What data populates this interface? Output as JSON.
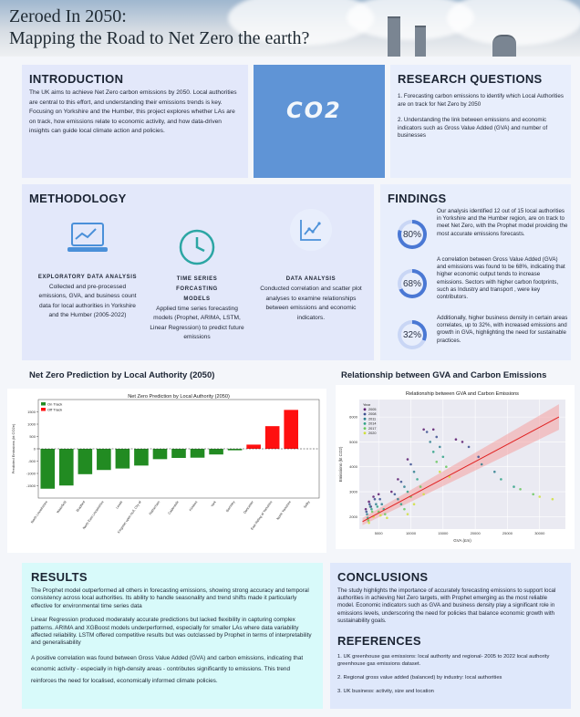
{
  "hero": {
    "title_line1": "Zeroed In 2050:",
    "title_line2": "Mapping the Road to Net Zero the earth?"
  },
  "introduction": {
    "title": "INTRODUCTION",
    "text": "The UK aims to achieve Net Zero carbon emissions by 2050. Local authorities are central to this effort, and understanding their emissions trends is key. Focusing on Yorkshire and the Humber, this project explores whether LAs are on track, how emissions relate to economic activity, and how data-driven insights can guide local climate action and policies."
  },
  "co2_image": {
    "text": "CO2"
  },
  "research_questions": {
    "title": "RESEARCH QUESTIONS",
    "items": [
      "1. Forecasting carbon emissions to identify which Local Authorities are on track for Net Zero by 2050",
      "2. Understanding the link between emissions and economic indicators such as Gross Value Added (GVA) and number of businesses"
    ]
  },
  "methodology": {
    "title": "METHODOLOGY",
    "columns": [
      {
        "icon": "laptop-chart-icon",
        "heading": "EXPLORATORY DATA ANALYSIS",
        "text": "Collected and pre-processed emissions, GVA, and business count data for local authorities in Yorkshire and the Humber (2005-2022)"
      },
      {
        "icon": "clock-icon",
        "heading": "TIME SERIES FORCASTING MODELS",
        "text": "Applied time series forecasting models (Prophet, ARIMA, LSTM, Linear Regression) to predict future emissions"
      },
      {
        "icon": "line-chart-icon",
        "heading": "DATA ANALYSIS",
        "text": "Conducted correlation and scatter plot analyses to examine relationships between emissions and economic indicators."
      }
    ]
  },
  "findings": {
    "title": "FINDINGS",
    "items": [
      {
        "value": 80,
        "label": "80%",
        "text": "Our analysis identified 12 out of 15 local authorities in Yorkshire and the Humber region, are on track to meet Net Zero, with the Prophet model providing the most accurate emissions forecasts."
      },
      {
        "value": 68,
        "label": "68%",
        "text": "A correlation between Gross Value Added (GVA) and emissions was found to be 68%, indicating that higher economic output tends to increase emissions. Sectors with higher carbon footprints, such as Industry and transport , were key contributors."
      },
      {
        "value": 32,
        "label": "32%",
        "text": "Additionally, higher business density in certain areas correlates, up to 32%, with increased emissions and growth in GVA, highlighting the need for sustainable practices."
      }
    ]
  },
  "bar_panel": {
    "title": "Net Zero Prediction by Local Authority (2050)"
  },
  "scatter_panel": {
    "title": "Relationship between GVA and Carbon Emissions"
  },
  "chart_data": [
    {
      "type": "bar",
      "title": "Net Zero Prediction by Local Authority (2050)",
      "ylabel": "Predicted Emissions (kt CO2e)",
      "ylim": [
        -2000,
        2000
      ],
      "yticks": [
        -1500,
        -1000,
        -500,
        0,
        500,
        1000,
        1500
      ],
      "legend": [
        "On Track",
        "Off Track"
      ],
      "categories": [
        "North Lincolnshire",
        "Wakefield",
        "Bradford",
        "North East Lincolnshire",
        "Leeds",
        "Kingston upon Hull, City of",
        "Rotherham",
        "Calderdale",
        "Kirklees",
        "York",
        "Barnsley",
        "Doncaster",
        "East Riding of Yorkshire",
        "North Yorkshire",
        "Selby"
      ],
      "values": [
        -1620,
        -1490,
        -1030,
        -860,
        -800,
        -680,
        -420,
        -370,
        -360,
        -230,
        -60,
        170,
        920,
        1580,
        0
      ],
      "status": [
        "On Track",
        "On Track",
        "On Track",
        "On Track",
        "On Track",
        "On Track",
        "On Track",
        "On Track",
        "On Track",
        "On Track",
        "On Track",
        "Off Track",
        "Off Track",
        "Off Track",
        "On Track"
      ],
      "colors": {
        "on": "#228b22",
        "off": "#ff1010"
      }
    },
    {
      "type": "scatter",
      "title": "Relationship between GVA and Carbon Emissions",
      "xlabel": "GVA (£m)",
      "ylabel": "Emissions (kt CO2)",
      "xlim": [
        2000,
        34000
      ],
      "ylim": [
        1500,
        6700
      ],
      "xticks": [
        5000,
        10000,
        15000,
        20000,
        25000,
        30000
      ],
      "yticks": [
        2000,
        3000,
        4000,
        5000,
        6000
      ],
      "legend_title": "Year",
      "legend": [
        "2005",
        "2008",
        "2011",
        "2014",
        "2017",
        "2020"
      ],
      "series_colors": [
        "#5b1a6e",
        "#3b4f8f",
        "#2f7f8e",
        "#2fa286",
        "#69c85e",
        "#cfe03c"
      ],
      "regression": {
        "x": [
          2500,
          33000
        ],
        "y": [
          1800,
          6000
        ],
        "color": "#e02020"
      },
      "points": [
        {
          "x": 3500,
          "y": 2600,
          "s": 0
        },
        {
          "x": 4200,
          "y": 2800,
          "s": 0
        },
        {
          "x": 3000,
          "y": 2300,
          "s": 0
        },
        {
          "x": 8000,
          "y": 3500,
          "s": 0
        },
        {
          "x": 12000,
          "y": 5500,
          "s": 0
        },
        {
          "x": 13500,
          "y": 5500,
          "s": 0
        },
        {
          "x": 17000,
          "y": 5100,
          "s": 0
        },
        {
          "x": 9500,
          "y": 4300,
          "s": 0
        },
        {
          "x": 7000,
          "y": 3000,
          "s": 0
        },
        {
          "x": 3800,
          "y": 2400,
          "s": 0
        },
        {
          "x": 5000,
          "y": 2900,
          "s": 0
        },
        {
          "x": 18000,
          "y": 5000,
          "s": 0
        },
        {
          "x": 3600,
          "y": 2500,
          "s": 1
        },
        {
          "x": 4400,
          "y": 2700,
          "s": 1
        },
        {
          "x": 8500,
          "y": 3400,
          "s": 1
        },
        {
          "x": 12500,
          "y": 5400,
          "s": 1
        },
        {
          "x": 14000,
          "y": 5200,
          "s": 1
        },
        {
          "x": 19000,
          "y": 4800,
          "s": 1
        },
        {
          "x": 10000,
          "y": 4100,
          "s": 1
        },
        {
          "x": 7500,
          "y": 2900,
          "s": 1
        },
        {
          "x": 5200,
          "y": 2700,
          "s": 1
        },
        {
          "x": 3100,
          "y": 2200,
          "s": 1
        },
        {
          "x": 20500,
          "y": 4400,
          "s": 1
        },
        {
          "x": 3700,
          "y": 2400,
          "s": 2
        },
        {
          "x": 4600,
          "y": 2500,
          "s": 2
        },
        {
          "x": 9000,
          "y": 3200,
          "s": 2
        },
        {
          "x": 13000,
          "y": 5000,
          "s": 2
        },
        {
          "x": 14500,
          "y": 4800,
          "s": 2
        },
        {
          "x": 21000,
          "y": 4100,
          "s": 2
        },
        {
          "x": 10500,
          "y": 3800,
          "s": 2
        },
        {
          "x": 8000,
          "y": 2700,
          "s": 2
        },
        {
          "x": 5500,
          "y": 2500,
          "s": 2
        },
        {
          "x": 3200,
          "y": 2100,
          "s": 2
        },
        {
          "x": 23000,
          "y": 3800,
          "s": 2
        },
        {
          "x": 3900,
          "y": 2300,
          "s": 3
        },
        {
          "x": 4800,
          "y": 2400,
          "s": 3
        },
        {
          "x": 9500,
          "y": 3000,
          "s": 3
        },
        {
          "x": 13500,
          "y": 4600,
          "s": 3
        },
        {
          "x": 15000,
          "y": 4400,
          "s": 3
        },
        {
          "x": 24000,
          "y": 3500,
          "s": 3
        },
        {
          "x": 11000,
          "y": 3500,
          "s": 3
        },
        {
          "x": 8500,
          "y": 2500,
          "s": 3
        },
        {
          "x": 5800,
          "y": 2300,
          "s": 3
        },
        {
          "x": 3300,
          "y": 1950,
          "s": 3
        },
        {
          "x": 26000,
          "y": 3200,
          "s": 3
        },
        {
          "x": 4000,
          "y": 2200,
          "s": 4
        },
        {
          "x": 5000,
          "y": 2200,
          "s": 4
        },
        {
          "x": 10000,
          "y": 2800,
          "s": 4
        },
        {
          "x": 14000,
          "y": 4200,
          "s": 4
        },
        {
          "x": 15500,
          "y": 4000,
          "s": 4
        },
        {
          "x": 27000,
          "y": 3100,
          "s": 4
        },
        {
          "x": 11500,
          "y": 3200,
          "s": 4
        },
        {
          "x": 9000,
          "y": 2300,
          "s": 4
        },
        {
          "x": 6000,
          "y": 2100,
          "s": 4
        },
        {
          "x": 3400,
          "y": 1850,
          "s": 4
        },
        {
          "x": 29000,
          "y": 2900,
          "s": 4
        },
        {
          "x": 4200,
          "y": 2000,
          "s": 5
        },
        {
          "x": 5300,
          "y": 2050,
          "s": 5
        },
        {
          "x": 10500,
          "y": 2500,
          "s": 5
        },
        {
          "x": 14500,
          "y": 3800,
          "s": 5
        },
        {
          "x": 16000,
          "y": 3600,
          "s": 5
        },
        {
          "x": 30000,
          "y": 2800,
          "s": 5
        },
        {
          "x": 12000,
          "y": 2900,
          "s": 5
        },
        {
          "x": 9500,
          "y": 2100,
          "s": 5
        },
        {
          "x": 6300,
          "y": 1950,
          "s": 5
        },
        {
          "x": 3500,
          "y": 1750,
          "s": 5
        },
        {
          "x": 32000,
          "y": 2700,
          "s": 5
        }
      ]
    }
  ],
  "results": {
    "title": "RESULTS",
    "paragraphs": [
      "The Prophet model outperformed all others in forecasting emissions, showing strong accuracy and temporal consistency across local authorities. Its ability to handle seasonality and trend shifts made it particularly effective for environmental time series data",
      "Linear Regression produced moderately accurate predictions but lacked flexibility in capturing complex patterns. ARIMA and XGBoost models underperformed, especially for smaller LAs where data variability affected reliability. LSTM offered competitive results but was outclassed by Prophet in terms of interpretability and generalisability",
      "A positive correlation was found between Gross Value Added (GVA) and carbon emissions, indicating that economic activity - especially in high-density areas - contributes significantly to emissions. This trend reinforces the need for localised, economically informed climate policies."
    ]
  },
  "conclusions": {
    "title": "CONCLUSIONS",
    "text": "The study highlights the importance of accurately forecasting emissions to support local authorities in achieving Net Zero targets, with Prophet emerging as the most reliable model. Economic indicators such as GVA and business density play a significant role in emissions levels, underscoring the need for policies that balance economic growth with sustainability goals."
  },
  "references": {
    "title": "REFERENCES",
    "items": [
      "1. UK greenhouse gas emissions: local authority and regional- 2005 to 2022 local authority greenhouse gas emissions dataset.",
      "2. Regional gross value added (balanced) by industry: local authorities",
      "3. UK business: activity, size and location"
    ]
  }
}
